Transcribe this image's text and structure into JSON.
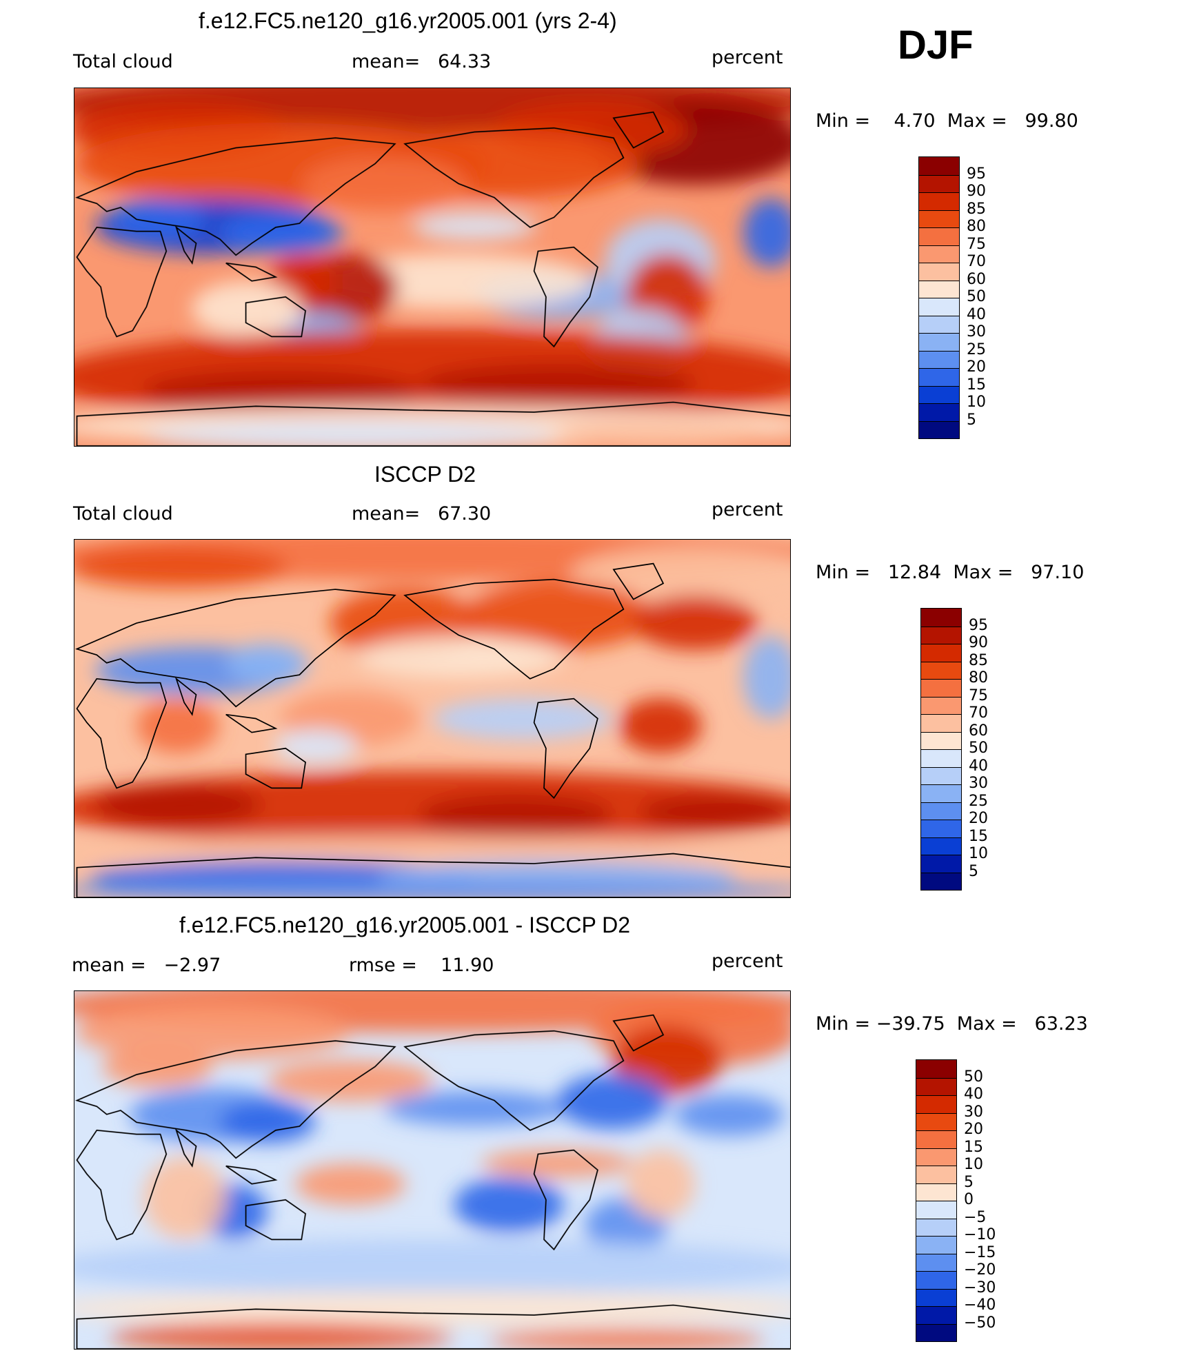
{
  "season": "DJF",
  "panels": [
    {
      "title": "f.e12.FC5.ne120_g16.yr2005.001 (yrs 2-4)",
      "left_label": "Total cloud",
      "center_label": "mean=   64.33",
      "right_label": "percent",
      "minmax": "Min =    4.70  Max =   99.80",
      "colorbar": {
        "labels": [
          "95",
          "90",
          "85",
          "80",
          "75",
          "70",
          "60",
          "50",
          "40",
          "30",
          "25",
          "20",
          "15",
          "10",
          "5"
        ],
        "colors": [
          "#8b0000",
          "#b41400",
          "#d42a00",
          "#e84a10",
          "#f47040",
          "#fa9870",
          "#fcc0a0",
          "#fde5d2",
          "#d9e7fb",
          "#b6cff8",
          "#8ab2f4",
          "#5d8ff0",
          "#2f66e8",
          "#0a3fd4",
          "#0019a8",
          "#000a80"
        ]
      },
      "map_style": "model"
    },
    {
      "title": "ISCCP D2",
      "left_label": "Total cloud",
      "center_label": "mean=   67.30",
      "right_label": "percent",
      "minmax": "Min =   12.84  Max =   97.10",
      "colorbar": {
        "labels": [
          "95",
          "90",
          "85",
          "80",
          "75",
          "70",
          "60",
          "50",
          "40",
          "30",
          "25",
          "20",
          "15",
          "10",
          "5"
        ],
        "colors": [
          "#8b0000",
          "#b41400",
          "#d42a00",
          "#e84a10",
          "#f47040",
          "#fa9870",
          "#fcc0a0",
          "#fde5d2",
          "#d9e7fb",
          "#b6cff8",
          "#8ab2f4",
          "#5d8ff0",
          "#2f66e8",
          "#0a3fd4",
          "#0019a8",
          "#000a80"
        ]
      },
      "map_style": "obs"
    },
    {
      "title": "f.e12.FC5.ne120_g16.yr2005.001 - ISCCP D2",
      "left_label": "mean =   −2.97",
      "center_label": "rmse =    11.90",
      "right_label": "percent",
      "minmax": "Min = −39.75  Max =   63.23",
      "colorbar": {
        "labels": [
          "50",
          "40",
          "30",
          "20",
          "15",
          "10",
          "5",
          "0",
          "−5",
          "−10",
          "−15",
          "−20",
          "−30",
          "−40",
          "−50"
        ],
        "colors": [
          "#8b0000",
          "#b41400",
          "#d42a00",
          "#e84a10",
          "#f47040",
          "#fa9870",
          "#fcc0a0",
          "#fde5d2",
          "#d9e7fb",
          "#b6cff8",
          "#8ab2f4",
          "#5d8ff0",
          "#2f66e8",
          "#0a3fd4",
          "#0019a8",
          "#000a80"
        ]
      },
      "map_style": "diff"
    }
  ]
}
